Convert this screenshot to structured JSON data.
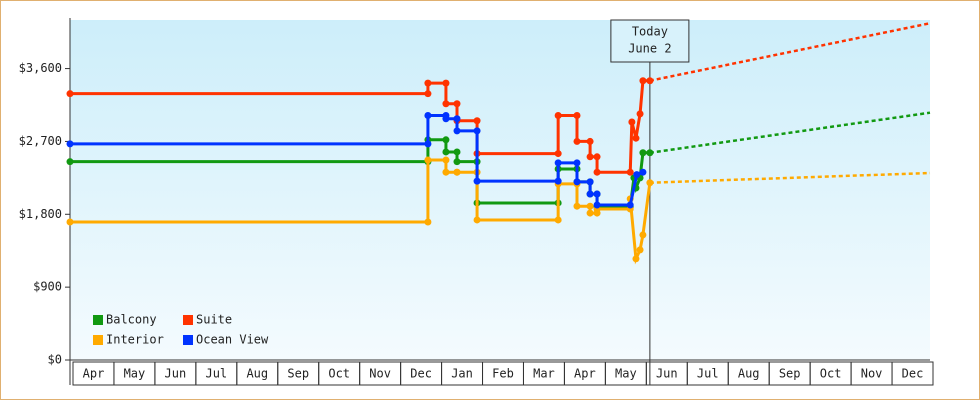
{
  "chart_data": {
    "type": "line",
    "categories": [
      "Apr",
      "May",
      "Jun",
      "Jul",
      "Aug",
      "Sep",
      "Oct",
      "Nov",
      "Dec",
      "Jan",
      "Feb",
      "Mar",
      "Apr",
      "May",
      "Jun",
      "Jul",
      "Aug",
      "Sep",
      "Oct",
      "Nov",
      "Dec"
    ],
    "xlim": [
      0,
      21
    ],
    "ylim": [
      0,
      4200
    ],
    "yticks": [
      {
        "value": 0,
        "label": "$0"
      },
      {
        "value": 900,
        "label": "$900"
      },
      {
        "value": 1800,
        "label": "$1,800"
      },
      {
        "value": 2700,
        "label": "$2,700"
      },
      {
        "value": 3600,
        "label": "$3,600"
      }
    ],
    "annotation": {
      "x": 14.16,
      "lines": [
        "Today",
        "June 2"
      ]
    },
    "series": [
      {
        "name": "Balcony",
        "color": "#119911",
        "x": [
          0,
          8.74,
          8.74,
          9.18,
          9.18,
          9.45,
          9.45,
          9.94,
          9.94,
          11.92,
          11.92,
          12.38,
          12.38,
          12.7,
          12.7,
          12.87,
          12.87,
          13.68,
          13.77,
          13.82,
          13.92,
          13.99,
          14.16
        ],
        "values": [
          2450,
          2450,
          2720,
          2720,
          2570,
          2570,
          2450,
          2450,
          1940,
          1940,
          2360,
          2360,
          2200,
          2200,
          2050,
          2050,
          1890,
          1890,
          2250,
          2125,
          2250,
          2560,
          2560
        ],
        "forecast": {
          "x": [
            14.16,
            21
          ],
          "values": [
            2560,
            3055
          ]
        }
      },
      {
        "name": "Suite",
        "color": "#ff3300",
        "x": [
          0,
          8.74,
          8.74,
          9.18,
          9.18,
          9.45,
          9.45,
          9.94,
          9.94,
          11.92,
          11.92,
          12.38,
          12.38,
          12.7,
          12.7,
          12.87,
          12.87,
          13.68,
          13.72,
          13.82,
          13.92,
          13.99,
          14.16
        ],
        "values": [
          3290,
          3290,
          3420,
          3420,
          3165,
          3165,
          2955,
          2955,
          2550,
          2550,
          3020,
          3020,
          2700,
          2700,
          2510,
          2510,
          2320,
          2320,
          2940,
          2740,
          3040,
          3450,
          3450
        ],
        "forecast": {
          "x": [
            14.16,
            21
          ],
          "values": [
            3450,
            4160
          ]
        }
      },
      {
        "name": "Interior",
        "color": "#ffaa00",
        "x": [
          0,
          8.74,
          8.74,
          9.18,
          9.18,
          9.45,
          9.45,
          9.94,
          9.94,
          11.92,
          11.92,
          12.38,
          12.38,
          12.7,
          12.7,
          12.87,
          12.87,
          13.68,
          13.68,
          13.82,
          13.92,
          13.99,
          14.16
        ],
        "values": [
          1705,
          1705,
          2470,
          2470,
          2320,
          2320,
          2320,
          2320,
          1730,
          1730,
          2175,
          2175,
          1900,
          1900,
          1815,
          1815,
          1865,
          1865,
          1990,
          1250,
          1360,
          1545,
          2190
        ],
        "forecast": {
          "x": [
            14.16,
            21
          ],
          "values": [
            2190,
            2310
          ]
        }
      },
      {
        "name": "Ocean View",
        "color": "#0033ff",
        "x": [
          0,
          8.74,
          8.74,
          9.18,
          9.18,
          9.45,
          9.45,
          9.94,
          9.94,
          11.92,
          11.92,
          12.38,
          12.38,
          12.7,
          12.7,
          12.87,
          12.87,
          13.68,
          13.84,
          13.99
        ],
        "values": [
          2670,
          2670,
          3020,
          3020,
          2980,
          2980,
          2830,
          2830,
          2210,
          2210,
          2435,
          2435,
          2200,
          2200,
          2050,
          2050,
          1915,
          1915,
          2290,
          2320
        ]
      }
    ]
  }
}
